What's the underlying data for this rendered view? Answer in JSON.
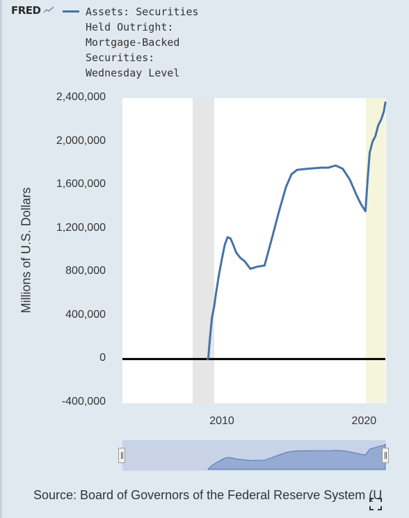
{
  "header": {
    "logo_text": "FRED",
    "legend_label": "Assets: Securities Held Outright: Mortgage-Backed Securities: Wednesday Level",
    "series_color": "#4572a7"
  },
  "chart_data": {
    "type": "line",
    "title": "",
    "ylabel": "Millions of U.S. Dollars",
    "xlabel": "",
    "xlim": [
      2003.0,
      2021.5
    ],
    "ylim": [
      -400000,
      2400000
    ],
    "yticks": [
      "2,400,000",
      "2,000,000",
      "1,600,000",
      "1,200,000",
      "800,000",
      "400,000",
      "0",
      "-400,000"
    ],
    "xticks": [
      "2010",
      "2020"
    ],
    "recession_shading": [
      [
        2007.95,
        2009.45
      ]
    ],
    "highlight_shading": [
      [
        2020.15,
        2021.5
      ]
    ],
    "zero_line": true,
    "series": [
      {
        "name": "Assets: Securities Held Outright: Mortgage-Backed Securities: Wednesday Level",
        "x": [
          2009.0,
          2009.05,
          2009.1,
          2009.2,
          2009.3,
          2009.45,
          2009.6,
          2009.8,
          2010.0,
          2010.2,
          2010.4,
          2010.6,
          2010.8,
          2011.0,
          2011.3,
          2011.6,
          2012.0,
          2012.5,
          2013.0,
          2013.5,
          2014.0,
          2014.5,
          2014.9,
          2015.3,
          2016.0,
          2017.0,
          2017.5,
          2018.0,
          2018.5,
          2019.0,
          2019.5,
          2019.8,
          2020.1,
          2020.25,
          2020.4,
          2020.6,
          2020.8,
          2021.0,
          2021.2,
          2021.4,
          2021.5
        ],
        "y": [
          0,
          20000,
          100000,
          250000,
          380000,
          480000,
          620000,
          780000,
          920000,
          1050000,
          1120000,
          1110000,
          1050000,
          980000,
          930000,
          900000,
          830000,
          850000,
          860000,
          1100000,
          1350000,
          1580000,
          1700000,
          1740000,
          1750000,
          1760000,
          1760000,
          1780000,
          1750000,
          1650000,
          1500000,
          1420000,
          1360000,
          1650000,
          1900000,
          2000000,
          2050000,
          2150000,
          2200000,
          2280000,
          2360000
        ]
      }
    ]
  },
  "navigator": {
    "handle_left": "left-handle",
    "handle_right": "right-handle"
  },
  "footer": {
    "source": "Source: Board of Governors of the Federal Reserve System (U"
  }
}
